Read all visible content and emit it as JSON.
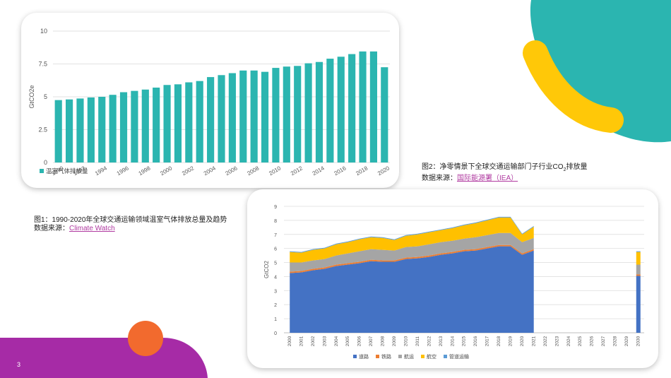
{
  "page_number": "3",
  "colors": {
    "teal": "#2bb5b0",
    "yellow": "#ffc808",
    "magenta": "#a62ba6",
    "orange": "#f26a2e"
  },
  "caption1": {
    "line1": "图1：1990-2020年全球交通运输领域温室气体排放总量及趋势",
    "source_label": "数据来源：",
    "source_link": "Climate Watch"
  },
  "caption2": {
    "line1_pre": "图2：净零情景下全球交通运输部门子行业CO",
    "line1_sub": "2",
    "line1_post": "排放量",
    "source_label": "数据来源：",
    "source_link": "国际能源署（IEA）"
  },
  "chart_data": [
    {
      "type": "bar",
      "ylabel": "GtCO2e",
      "ylim": [
        0,
        10
      ],
      "yticks": [
        "0",
        "2.5",
        "5",
        "7.5",
        "10"
      ],
      "categories": [
        "1990",
        "1991",
        "1992",
        "1993",
        "1994",
        "1995",
        "1996",
        "1997",
        "1998",
        "1999",
        "2000",
        "2001",
        "2002",
        "2003",
        "2004",
        "2005",
        "2006",
        "2007",
        "2008",
        "2009",
        "2010",
        "2011",
        "2012",
        "2013",
        "2014",
        "2015",
        "2016",
        "2017",
        "2018",
        "2019",
        "2020"
      ],
      "xtick_labels": [
        "1990",
        "1992",
        "1994",
        "1996",
        "1998",
        "2000",
        "2002",
        "2004",
        "2006",
        "2008",
        "2010",
        "2012",
        "2014",
        "2016",
        "2018",
        "2020"
      ],
      "series": [
        {
          "name": "温室气体排放量",
          "color": "#2bb5b0",
          "values": [
            4.75,
            4.8,
            4.87,
            4.95,
            5.0,
            5.15,
            5.35,
            5.45,
            5.55,
            5.7,
            5.9,
            5.95,
            6.1,
            6.2,
            6.5,
            6.65,
            6.8,
            7.0,
            7.0,
            6.9,
            7.2,
            7.3,
            7.35,
            7.55,
            7.65,
            7.9,
            8.05,
            8.25,
            8.45,
            8.45,
            7.25
          ]
        }
      ]
    },
    {
      "type": "area",
      "ylabel": "GtCO2",
      "ylim": [
        0,
        9
      ],
      "yticks": [
        "0",
        "1",
        "2",
        "3",
        "4",
        "5",
        "6",
        "7",
        "8",
        "9"
      ],
      "categories": [
        "2000",
        "2001",
        "2002",
        "2003",
        "2004",
        "2005",
        "2006",
        "2007",
        "2008",
        "2009",
        "2010",
        "2011",
        "2012",
        "2013",
        "2014",
        "2015",
        "2016",
        "2017",
        "2018",
        "2019",
        "2020",
        "2021",
        "2022",
        "2023",
        "2024",
        "2025",
        "2026",
        "2027",
        "2028",
        "2029",
        "2030"
      ],
      "series": [
        {
          "name": "道路",
          "color": "#4472c4",
          "values": [
            4.25,
            4.3,
            4.45,
            4.55,
            4.75,
            4.85,
            4.95,
            5.1,
            5.05,
            5.05,
            5.25,
            5.3,
            5.4,
            5.55,
            5.65,
            5.8,
            5.85,
            6.0,
            6.15,
            6.15,
            5.55,
            5.85,
            null,
            null,
            null,
            null,
            null,
            null,
            null,
            null,
            4.05
          ]
        },
        {
          "name": "铁路",
          "color": "#ed7d31",
          "values": [
            0.1,
            0.1,
            0.1,
            0.1,
            0.1,
            0.1,
            0.1,
            0.1,
            0.1,
            0.1,
            0.1,
            0.1,
            0.1,
            0.1,
            0.1,
            0.1,
            0.1,
            0.1,
            0.1,
            0.1,
            0.1,
            0.1,
            null,
            null,
            null,
            null,
            null,
            null,
            null,
            null,
            0.1
          ]
        },
        {
          "name": "航运",
          "color": "#a5a5a5",
          "values": [
            0.65,
            0.6,
            0.6,
            0.6,
            0.65,
            0.7,
            0.75,
            0.75,
            0.75,
            0.7,
            0.75,
            0.75,
            0.8,
            0.8,
            0.8,
            0.8,
            0.85,
            0.85,
            0.85,
            0.85,
            0.8,
            0.8,
            null,
            null,
            null,
            null,
            null,
            null,
            null,
            null,
            0.7
          ]
        },
        {
          "name": "航空",
          "color": "#ffc000",
          "values": [
            0.75,
            0.7,
            0.75,
            0.75,
            0.8,
            0.8,
            0.85,
            0.85,
            0.85,
            0.75,
            0.8,
            0.85,
            0.85,
            0.85,
            0.9,
            0.95,
            1.0,
            1.05,
            1.1,
            1.1,
            0.55,
            0.8,
            null,
            null,
            null,
            null,
            null,
            null,
            null,
            null,
            0.9
          ]
        },
        {
          "name": "管道运输",
          "color": "#5b9bd5",
          "values": [
            0.05,
            0.05,
            0.05,
            0.05,
            0.05,
            0.05,
            0.05,
            0.05,
            0.05,
            0.05,
            0.05,
            0.05,
            0.05,
            0.05,
            0.05,
            0.05,
            0.05,
            0.05,
            0.05,
            0.05,
            0.05,
            0.05,
            null,
            null,
            null,
            null,
            null,
            null,
            null,
            null,
            0.05
          ]
        }
      ]
    }
  ]
}
